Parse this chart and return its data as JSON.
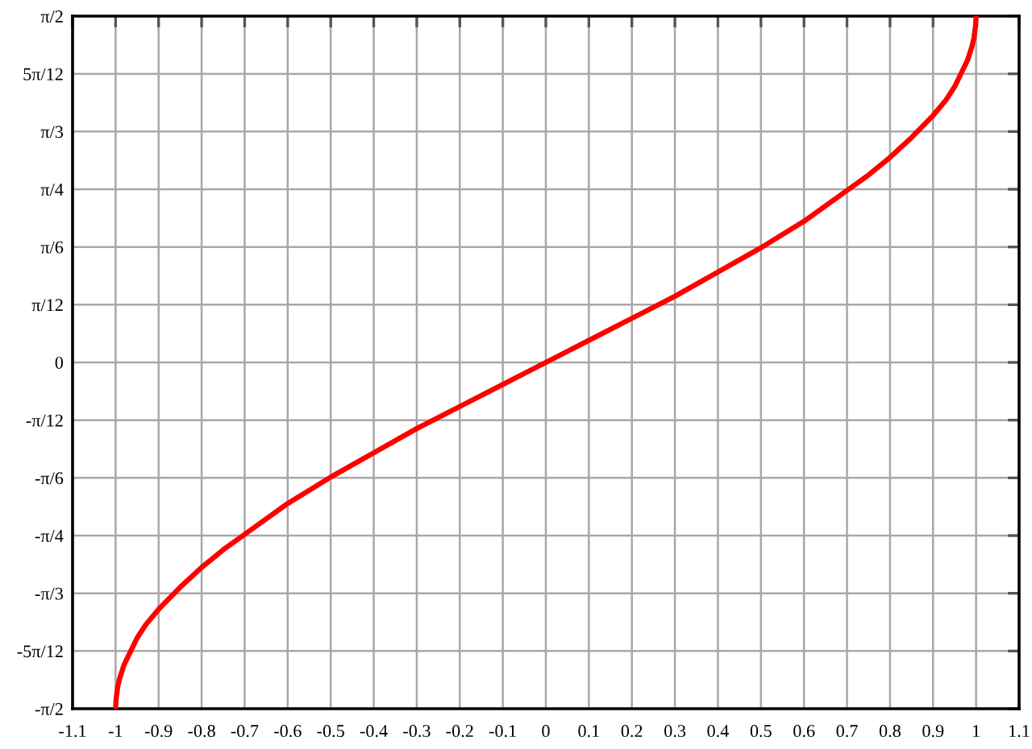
{
  "chart_data": {
    "type": "line",
    "x": [
      -1,
      -0.999,
      -0.995,
      -0.99,
      -0.98,
      -0.97,
      -0.95,
      -0.93,
      -0.9,
      -0.85,
      -0.8,
      -0.75,
      -0.7,
      -0.6,
      -0.5,
      -0.4,
      -0.3,
      -0.2,
      -0.1,
      0,
      0.1,
      0.2,
      0.3,
      0.4,
      0.5,
      0.6,
      0.7,
      0.75,
      0.8,
      0.85,
      0.9,
      0.93,
      0.95,
      0.97,
      0.98,
      0.99,
      0.995,
      0.999,
      1
    ],
    "series": [
      {
        "color": "#ff0000",
        "values": [
          -1.57,
          -1.53,
          -1.47,
          -1.43,
          -1.37,
          -1.33,
          -1.25,
          -1.19,
          -1.12,
          -1.02,
          -0.93,
          -0.85,
          -0.78,
          -0.64,
          -0.52,
          -0.41,
          -0.3,
          -0.2,
          -0.1,
          0,
          0.1,
          0.2,
          0.3,
          0.41,
          0.52,
          0.64,
          0.78,
          0.85,
          0.93,
          1.02,
          1.12,
          1.19,
          1.25,
          1.33,
          1.37,
          1.43,
          1.47,
          1.53,
          1.57
        ]
      }
    ],
    "xlim": [
      -1.1,
      1.1
    ],
    "ylim": [
      -1.5708,
      1.5708
    ],
    "xticks": [
      -1.1,
      -1,
      -0.9,
      -0.8,
      -0.7,
      -0.6,
      -0.5,
      -0.4,
      -0.3,
      -0.2,
      -0.1,
      0,
      0.1,
      0.2,
      0.3,
      0.4,
      0.5,
      0.6,
      0.7,
      0.8,
      0.9,
      1,
      1.1
    ],
    "yticks": [
      {
        "value": -1.5708,
        "label": "-π/2"
      },
      {
        "value": -1.309,
        "label": "-5π/12"
      },
      {
        "value": -1.0472,
        "label": "-π/3"
      },
      {
        "value": -0.7854,
        "label": "-π/4"
      },
      {
        "value": -0.5236,
        "label": "-π/6"
      },
      {
        "value": -0.2618,
        "label": "-π/12"
      },
      0,
      {
        "value": 0.2618,
        "label": "π/12"
      },
      {
        "value": 0.5236,
        "label": "π/6"
      },
      {
        "value": 0.7854,
        "label": "π/4"
      },
      {
        "value": 1.0472,
        "label": "π/3"
      },
      {
        "value": 1.309,
        "label": "5π/12"
      },
      {
        "value": 1.5708,
        "label": "π/2"
      }
    ],
    "grid": true,
    "line_style": "solid"
  }
}
